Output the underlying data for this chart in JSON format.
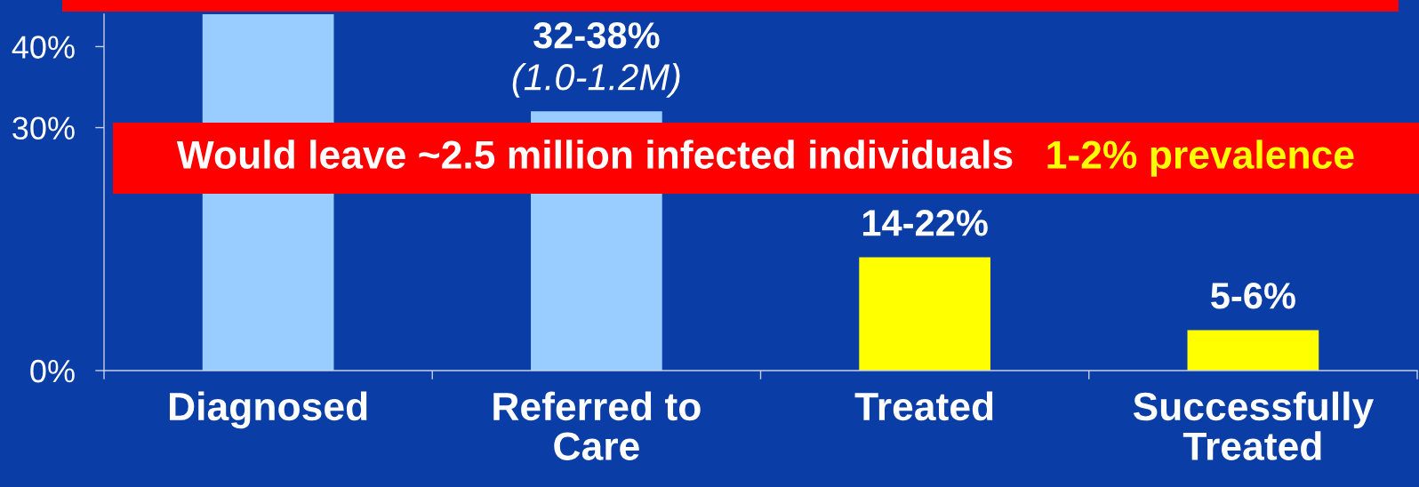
{
  "chart_data": {
    "type": "bar",
    "categories": [
      "Diagnosed",
      "Referred to\nCare",
      "Treated",
      "Successfully\nTreated"
    ],
    "values": [
      44,
      32,
      14,
      5
    ],
    "colors": [
      "#99ccff",
      "#99ccff",
      "#ffff00",
      "#ffff00"
    ],
    "value_labels": [
      null,
      "32-38%\n(1.0-1.2M)",
      "14-22%",
      "5-6%"
    ],
    "ylim": [
      0,
      44
    ],
    "yticks": [
      {
        "value": 0,
        "label": "0%"
      },
      {
        "value": 30,
        "label": "30%"
      },
      {
        "value": 40,
        "label": "40%"
      }
    ],
    "annotations": [
      "Would leave ~2.5 million infected individuals",
      "1-2% prevalence"
    ]
  }
}
